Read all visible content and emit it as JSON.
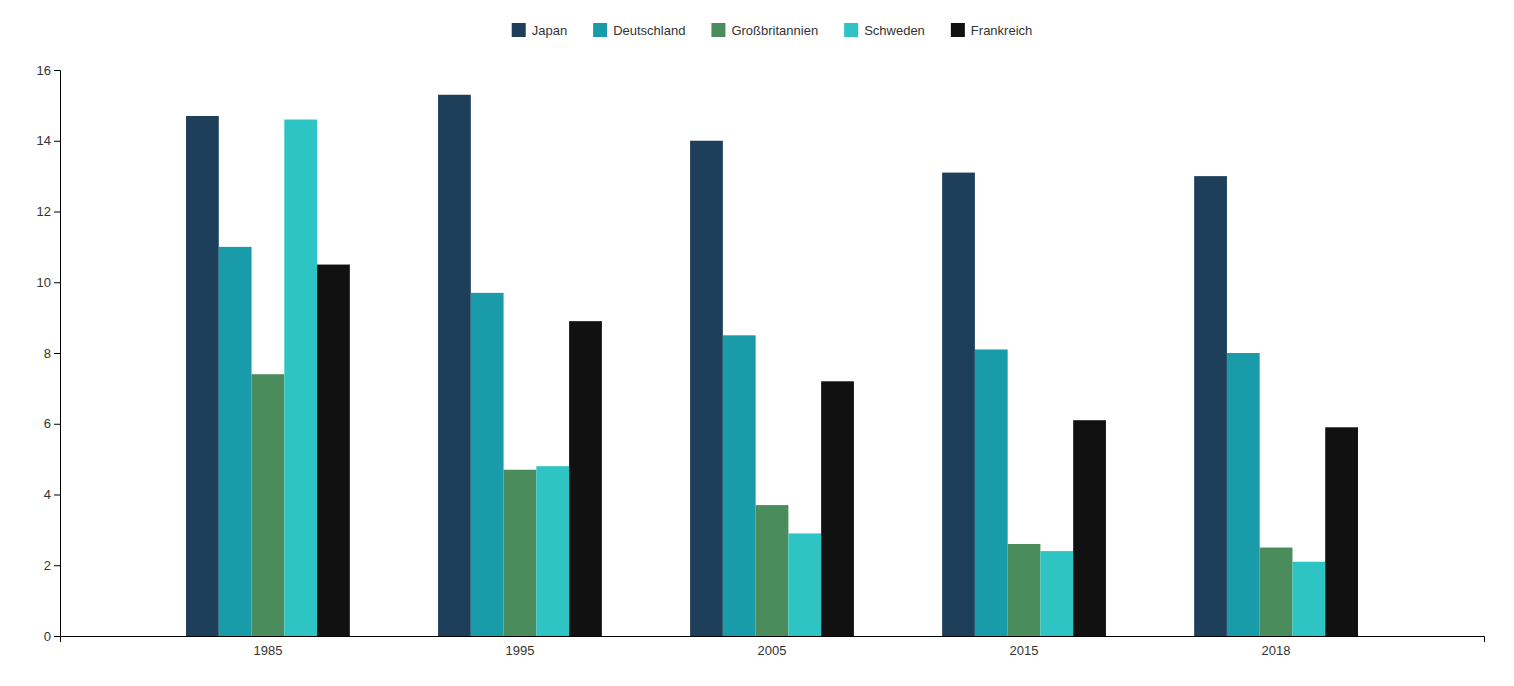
{
  "chart_data": {
    "type": "bar",
    "categories": [
      "1985",
      "1995",
      "2005",
      "2015",
      "2018"
    ],
    "series": [
      {
        "name": "Japan",
        "color": "#1e3f5a",
        "values": [
          14.7,
          15.3,
          14.0,
          13.1,
          13.0
        ]
      },
      {
        "name": "Deutschland",
        "color": "#1a9baa",
        "values": [
          11.0,
          9.7,
          8.5,
          8.1,
          8.0
        ]
      },
      {
        "name": "Großbritannien",
        "color": "#4a8c5c",
        "values": [
          7.4,
          4.7,
          3.7,
          2.6,
          2.5
        ]
      },
      {
        "name": "Schweden",
        "color": "#2ec4c4",
        "values": [
          14.6,
          4.8,
          2.9,
          2.4,
          2.1
        ]
      },
      {
        "name": "Frankreich",
        "color": "#111111",
        "values": [
          10.5,
          8.9,
          7.2,
          6.1,
          5.9
        ]
      }
    ],
    "ylim": [
      0,
      16
    ],
    "yticks": [
      0,
      2,
      4,
      6,
      8,
      10,
      12,
      14,
      16
    ],
    "grid": false,
    "legend": "top"
  }
}
